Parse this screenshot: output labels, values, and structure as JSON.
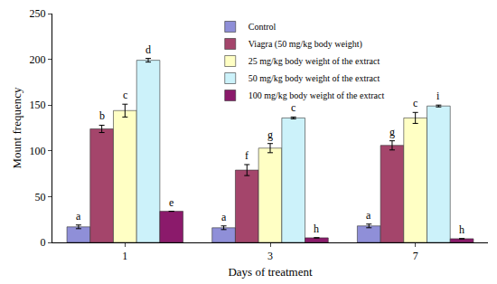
{
  "chart_data": {
    "type": "bar",
    "x_label": "Days of treatment",
    "y_label": "Mount frequency",
    "categories": [
      "1",
      "3",
      "7"
    ],
    "series": [
      {
        "name": "Control",
        "color": "#8f8fd8",
        "values": [
          17,
          16,
          18
        ],
        "errors": [
          2,
          2,
          2
        ],
        "annotations": [
          "a",
          "a",
          "a"
        ]
      },
      {
        "name": "Viagra (50 mg/kg body weight)",
        "color": "#a4456b",
        "values": [
          124,
          79,
          106
        ],
        "errors": [
          4,
          6,
          5
        ],
        "annotations": [
          "b",
          "f",
          "g"
        ]
      },
      {
        "name": "25 mg/kg body weight of the extract",
        "color": "#ffffc4",
        "values": [
          144,
          103,
          136
        ],
        "errors": [
          7,
          5,
          6
        ],
        "annotations": [
          "c",
          "g",
          "c"
        ]
      },
      {
        "name": "50 mg/kg body weight of the extract",
        "color": "#ccf2fa",
        "values": [
          199,
          136,
          149
        ],
        "errors": [
          2,
          1,
          1
        ],
        "annotations": [
          "d",
          "c",
          "i"
        ]
      },
      {
        "name": "100 mg/kg body weight of the extract",
        "color": "#8b1a6b",
        "values": [
          34,
          5,
          4
        ],
        "errors": [
          0,
          0,
          0
        ],
        "annotations": [
          "e",
          "h",
          "h"
        ]
      }
    ],
    "ylim": [
      0,
      250
    ],
    "yticks": [
      0,
      50,
      100,
      150,
      200,
      250
    ],
    "grid": false,
    "legend": "top"
  }
}
